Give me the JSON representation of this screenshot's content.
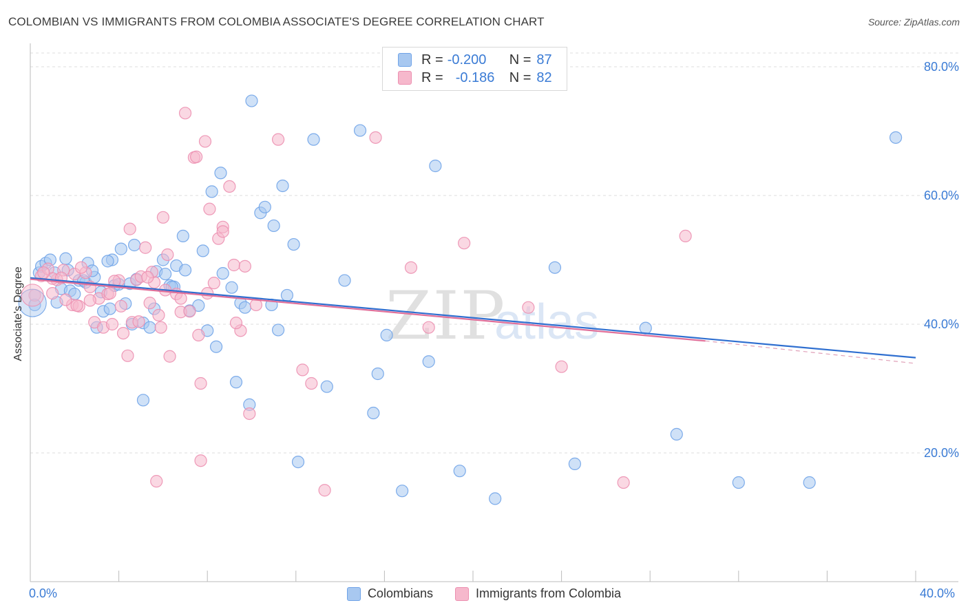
{
  "title": "COLOMBIAN VS IMMIGRANTS FROM COLOMBIA ASSOCIATE'S DEGREE CORRELATION CHART",
  "source": "Source: ZipAtlas.com",
  "legend": {
    "rows": [
      {
        "r_label": "R =",
        "r_value": "-0.200",
        "n_label": "N =",
        "n_value": "87",
        "color": "#a8c8f0"
      },
      {
        "r_label": "R =",
        "r_value": "-0.186",
        "n_label": "N =",
        "n_value": "82",
        "color": "#f6b8cc"
      }
    ]
  },
  "bottom_legend": [
    {
      "label": "Colombians",
      "color": "#a8c8f0"
    },
    {
      "label": "Immigrants from Colombia",
      "color": "#f6b8cc"
    }
  ],
  "watermark": {
    "zip": "ZIP",
    "atlas": "atlas"
  },
  "chart_data": {
    "type": "scatter",
    "ylabel": "Associate's Degree",
    "xlim": [
      0,
      40
    ],
    "ylim": [
      0,
      83
    ],
    "x_tick_labels": [
      "0.0%",
      "40.0%"
    ],
    "y_ticks": [
      20,
      40,
      60,
      80
    ],
    "y_tick_labels": [
      "20.0%",
      "40.0%",
      "60.0%",
      "80.0%"
    ],
    "grid": "horizontal-dashed",
    "series": [
      {
        "name": "Colombians",
        "color": "#6fa3e8",
        "fill": "#a8c8f0",
        "trend": {
          "x0": 0,
          "y0": 47.2,
          "x1": 40,
          "y1": 34.8
        },
        "points": [
          [
            0.2,
            43
          ],
          [
            0.4,
            48
          ],
          [
            0.5,
            49
          ],
          [
            0.7,
            49.5
          ],
          [
            0.9,
            50
          ],
          [
            1.1,
            48
          ],
          [
            1.4,
            45.5
          ],
          [
            1.7,
            48.4
          ],
          [
            1.8,
            45.2
          ],
          [
            1.2,
            43.4
          ],
          [
            2.0,
            44.7
          ],
          [
            2.2,
            46.8
          ],
          [
            2.5,
            46.5
          ],
          [
            2.6,
            49.5
          ],
          [
            2.9,
            47.3
          ],
          [
            3.0,
            39.5
          ],
          [
            3.2,
            45
          ],
          [
            3.3,
            42
          ],
          [
            3.6,
            42.4
          ],
          [
            3.7,
            50
          ],
          [
            3.8,
            46
          ],
          [
            4.0,
            46.2
          ],
          [
            4.1,
            51.7
          ],
          [
            4.3,
            43.2
          ],
          [
            4.5,
            46.3
          ],
          [
            4.6,
            40
          ],
          [
            4.8,
            47
          ],
          [
            5.1,
            40.2
          ],
          [
            5.4,
            39.5
          ],
          [
            5.6,
            42.4
          ],
          [
            5.7,
            48.2
          ],
          [
            6.0,
            50
          ],
          [
            6.1,
            47.8
          ],
          [
            6.3,
            46
          ],
          [
            6.5,
            45.8
          ],
          [
            6.6,
            49.1
          ],
          [
            6.9,
            53.7
          ],
          [
            7.0,
            48.4
          ],
          [
            7.2,
            42.1
          ],
          [
            7.6,
            42.9
          ],
          [
            7.8,
            51.4
          ],
          [
            8.0,
            39
          ],
          [
            8.2,
            60.6
          ],
          [
            8.4,
            36.5
          ],
          [
            8.6,
            63.5
          ],
          [
            8.7,
            47.9
          ],
          [
            9.1,
            45.7
          ],
          [
            9.3,
            31
          ],
          [
            9.5,
            43.3
          ],
          [
            9.7,
            42.6
          ],
          [
            9.9,
            27.5
          ],
          [
            10.0,
            74.7
          ],
          [
            10.4,
            57.3
          ],
          [
            10.6,
            58.2
          ],
          [
            11.0,
            55.3
          ],
          [
            11.2,
            39.1
          ],
          [
            11.4,
            61.5
          ],
          [
            11.6,
            44.5
          ],
          [
            11.9,
            52.4
          ],
          [
            12.1,
            18.6
          ],
          [
            12.8,
            68.7
          ],
          [
            13.4,
            30.3
          ],
          [
            14.2,
            46.8
          ],
          [
            14.9,
            70.1
          ],
          [
            15.5,
            26.2
          ],
          [
            15.7,
            32.3
          ],
          [
            16.1,
            38.3
          ],
          [
            16.8,
            14.1
          ],
          [
            18.0,
            34.2
          ],
          [
            18.3,
            64.6
          ],
          [
            19.4,
            17.2
          ],
          [
            21.0,
            12.9
          ],
          [
            23.7,
            48.8
          ],
          [
            24.6,
            18.3
          ],
          [
            27.8,
            39.4
          ],
          [
            29.2,
            22.9
          ],
          [
            32.0,
            15.4
          ],
          [
            35.2,
            15.4
          ],
          [
            39.1,
            69
          ],
          [
            5.1,
            28.2
          ],
          [
            10.9,
            43
          ],
          [
            6.4,
            45.8
          ],
          [
            2.8,
            48.3
          ],
          [
            4.7,
            52.3
          ],
          [
            1.6,
            50.2
          ],
          [
            3.5,
            49.8
          ],
          [
            2.4,
            46.8
          ]
        ]
      },
      {
        "name": "Immigrants from Colombia",
        "color": "#ec8fb0",
        "fill": "#f6b8cc",
        "trend": {
          "x0": 0,
          "y0": 47.0,
          "x1": 30.5,
          "y1": 37.4
        },
        "trend_dashed": {
          "x0": 30.5,
          "y0": 37.4,
          "x1": 40,
          "y1": 33.9
        },
        "points": [
          [
            0.2,
            44.5
          ],
          [
            0.5,
            47.5
          ],
          [
            0.8,
            48.6
          ],
          [
            1.0,
            44.8
          ],
          [
            1.2,
            46.9
          ],
          [
            1.5,
            48.4
          ],
          [
            1.9,
            43
          ],
          [
            2.0,
            47.8
          ],
          [
            2.2,
            42.8
          ],
          [
            2.5,
            48
          ],
          [
            2.7,
            45.8
          ],
          [
            2.9,
            40.3
          ],
          [
            3.1,
            44
          ],
          [
            3.3,
            39.5
          ],
          [
            3.5,
            44.7
          ],
          [
            3.7,
            40
          ],
          [
            4.0,
            46.8
          ],
          [
            4.2,
            38.6
          ],
          [
            4.4,
            35.1
          ],
          [
            4.6,
            40.3
          ],
          [
            4.8,
            46.9
          ],
          [
            5.0,
            47.4
          ],
          [
            5.2,
            51.9
          ],
          [
            5.4,
            43.3
          ],
          [
            5.6,
            46.5
          ],
          [
            5.8,
            41.4
          ],
          [
            6.0,
            56.6
          ],
          [
            6.3,
            35
          ],
          [
            6.6,
            44.7
          ],
          [
            6.8,
            44
          ],
          [
            7.0,
            72.8
          ],
          [
            7.4,
            65.9
          ],
          [
            7.6,
            38.3
          ],
          [
            7.9,
            68.4
          ],
          [
            8.1,
            57.9
          ],
          [
            8.3,
            46.4
          ],
          [
            8.5,
            53.3
          ],
          [
            8.7,
            55.1
          ],
          [
            9.0,
            61.4
          ],
          [
            9.2,
            49.2
          ],
          [
            9.5,
            39
          ],
          [
            9.9,
            26.1
          ],
          [
            11.2,
            68.7
          ],
          [
            12.3,
            32.9
          ],
          [
            12.7,
            30.8
          ],
          [
            13.3,
            14.2
          ],
          [
            15.6,
            69
          ],
          [
            17.2,
            48.8
          ],
          [
            18.0,
            39.5
          ],
          [
            19.6,
            52.6
          ],
          [
            22.5,
            42.6
          ],
          [
            24.0,
            33.4
          ],
          [
            26.8,
            15.4
          ],
          [
            29.6,
            53.7
          ],
          [
            4.5,
            54.8
          ],
          [
            5.5,
            48.1
          ],
          [
            5.7,
            15.6
          ],
          [
            7.7,
            18.8
          ],
          [
            7.7,
            30.8
          ],
          [
            6.2,
            50.8
          ],
          [
            1.0,
            47.1
          ],
          [
            1.6,
            43.8
          ],
          [
            2.3,
            48.8
          ],
          [
            2.7,
            43.7
          ],
          [
            3.6,
            44.8
          ],
          [
            4.1,
            42.8
          ],
          [
            4.9,
            40.4
          ],
          [
            5.3,
            47.3
          ],
          [
            6.1,
            45.3
          ],
          [
            6.8,
            41.9
          ],
          [
            7.2,
            42
          ],
          [
            8.0,
            44.8
          ],
          [
            8.7,
            54.4
          ],
          [
            9.3,
            40.2
          ],
          [
            9.7,
            49
          ],
          [
            10.2,
            43
          ],
          [
            3.8,
            46.7
          ],
          [
            2.1,
            42.9
          ],
          [
            1.4,
            47.2
          ],
          [
            0.6,
            48
          ],
          [
            5.9,
            39.5
          ],
          [
            7.5,
            66
          ]
        ]
      }
    ]
  }
}
